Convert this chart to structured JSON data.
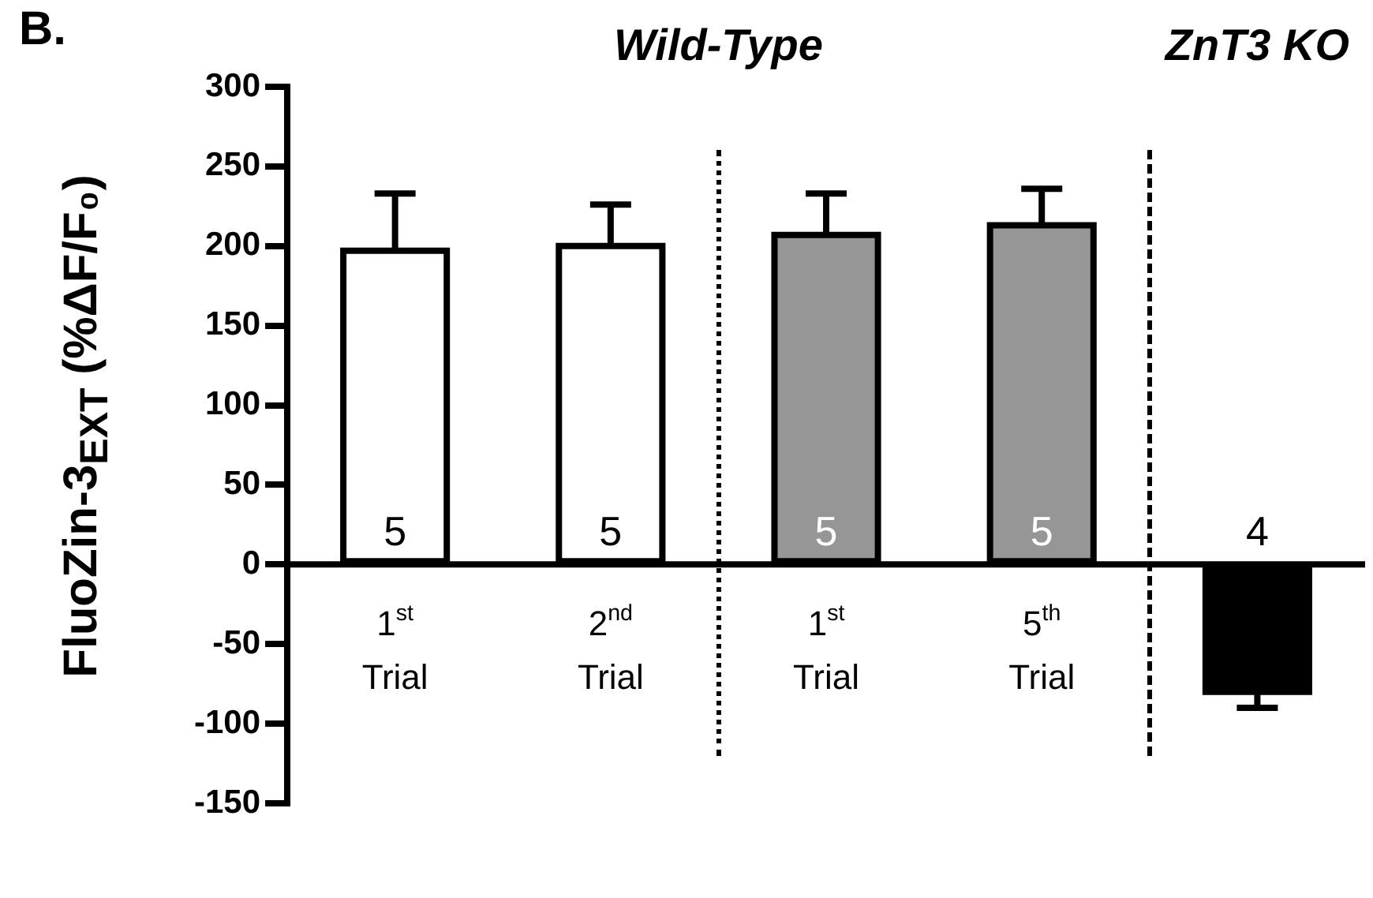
{
  "chart_data": {
    "type": "bar",
    "title": "B.",
    "ylabel": "FluoZin-3$_{EXT}$  (%ΔF/F₀)",
    "categories": [
      "1$^{st}$\nTrial",
      "2$^{nd}$\nTrial",
      "1$^{st}$\nTrial",
      "5$^{th}$\nTrial",
      null
    ],
    "values": [
      197,
      200,
      207,
      213,
      -80
    ],
    "colors": [
      "#ffffff",
      "#ffffff",
      "#969696",
      "#969696",
      "#000000"
    ],
    "errors": [
      [
        197,
        233
      ],
      [
        200,
        226
      ],
      [
        207,
        233
      ],
      [
        213,
        236
      ],
      [
        -90,
        -80
      ]
    ],
    "ylim": [
      -150,
      300
    ],
    "yticks": [
      -150,
      -100,
      -50,
      0,
      50,
      100,
      150,
      200,
      250,
      300
    ],
    "grid": false,
    "legend": false,
    "annotations": [
      "Wild-Type",
      "ZnT3 KO",
      "5",
      "5",
      "5",
      "5",
      "4"
    ]
  }
}
